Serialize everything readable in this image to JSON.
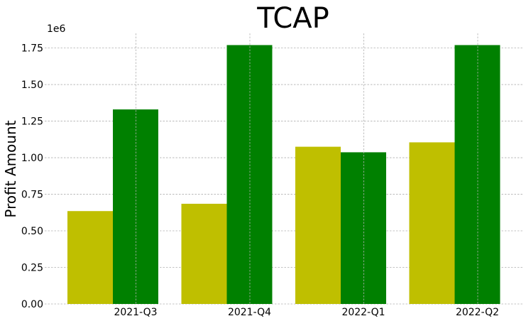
{
  "chart_data": {
    "type": "bar",
    "title": "TCAP",
    "xlabel": "",
    "ylabel": "Profit Amount",
    "y_offset_label": "1e6",
    "categories": [
      "2021-Q3",
      "2021-Q4",
      "2022-Q1",
      "2022-Q2"
    ],
    "series": [
      {
        "color": "#bfbf00",
        "values": [
          635000,
          685000,
          1075000,
          1105000
        ]
      },
      {
        "color": "#008000",
        "values": [
          1330000,
          1770000,
          1037000,
          1770000
        ]
      }
    ],
    "ylim": [
      0,
      1850000
    ],
    "yticks": [
      0,
      250000,
      500000,
      750000,
      1000000,
      1250000,
      1500000,
      1750000
    ],
    "ytick_labels": [
      "0.00",
      "0.25",
      "0.50",
      "0.75",
      "1.00",
      "1.25",
      "1.50",
      "1.75"
    ],
    "grid": true,
    "legend": false
  }
}
